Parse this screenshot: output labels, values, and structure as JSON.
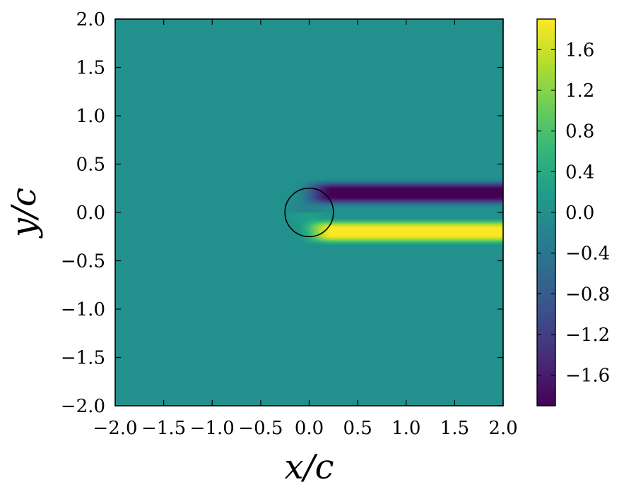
{
  "chart_data": {
    "type": "heatmap",
    "title": "",
    "xlabel": "x/c",
    "ylabel": "y/c",
    "xlim": [
      -2.0,
      2.0
    ],
    "ylim": [
      -2.0,
      2.0
    ],
    "x_ticks": [
      -2.0,
      -1.5,
      -1.0,
      -0.5,
      0.0,
      0.5,
      1.0,
      1.5,
      2.0
    ],
    "y_ticks": [
      -2.0,
      -1.5,
      -1.0,
      -0.5,
      0.0,
      0.5,
      1.0,
      1.5,
      2.0
    ],
    "x_tick_labels": [
      "−2.0",
      "−1.5",
      "−1.0",
      "−0.5",
      "0.0",
      "0.5",
      "1.0",
      "1.5",
      "2.0"
    ],
    "y_tick_labels": [
      "−2.0",
      "−1.5",
      "−1.0",
      "−0.5",
      "0.0",
      "0.5",
      "1.0",
      "1.5",
      "2.0"
    ],
    "colormap": "viridis",
    "colorbar": {
      "vmin": -1.9,
      "vmax": 1.9,
      "ticks": [
        -1.6,
        -1.2,
        -0.8,
        -0.4,
        0.0,
        0.4,
        0.8,
        1.2,
        1.6
      ],
      "tick_labels": [
        "−1.6",
        "−1.2",
        "−0.8",
        "−0.4",
        "0.0",
        "0.4",
        "0.8",
        "1.2",
        "1.6"
      ]
    },
    "field": {
      "background": 0.0,
      "wake_upper": {
        "value": -1.9,
        "y_center": 0.2,
        "half_width": 0.1,
        "x_start": 0.2,
        "x_end": 2.0
      },
      "wake_lower": {
        "value": 1.9,
        "y_center": -0.2,
        "half_width": 0.1,
        "x_start": 0.2,
        "x_end": 2.0
      }
    },
    "circle": {
      "center": [
        0.0,
        0.0
      ],
      "radius": 0.25
    },
    "grid": false
  }
}
